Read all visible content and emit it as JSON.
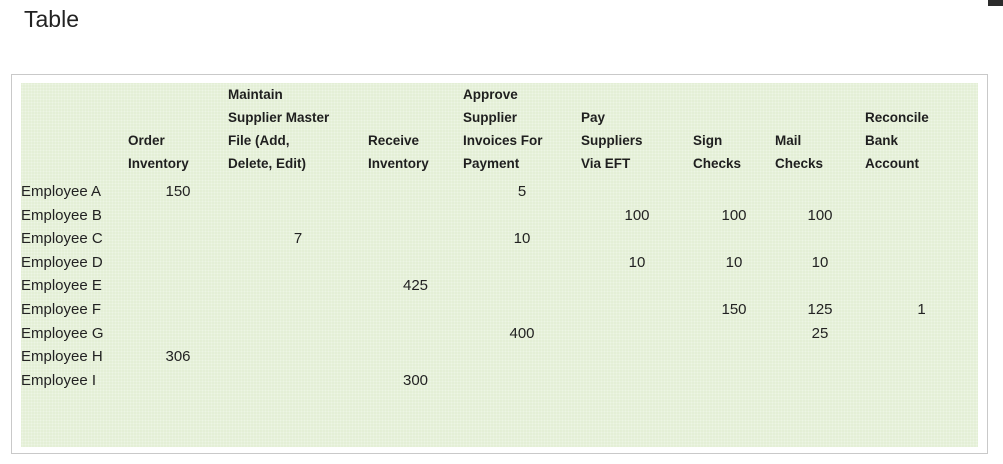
{
  "title": "Table",
  "table": {
    "headers": [
      "",
      "Order\nInventory",
      "Maintain\nSupplier Master\nFile (Add,\nDelete, Edit)",
      "Receive\nInventory",
      "Approve\nSupplier\nInvoices For\nPayment",
      "Pay\nSuppliers\nVia EFT",
      "Sign\nChecks",
      "Mail\nChecks",
      "Reconcile\nBank\nAccount"
    ],
    "rows": [
      [
        "Employee A",
        "150",
        "",
        "",
        "5",
        "",
        "",
        "",
        ""
      ],
      [
        "Employee B",
        "",
        "",
        "",
        "",
        "100",
        "100",
        "100",
        ""
      ],
      [
        "Employee C",
        "",
        "7",
        "",
        "10",
        "",
        "",
        "",
        ""
      ],
      [
        "Employee D",
        "",
        "",
        "",
        "",
        "10",
        "10",
        "10",
        ""
      ],
      [
        "Employee E",
        "",
        "",
        "425",
        "",
        "",
        "",
        "",
        ""
      ],
      [
        "Employee F",
        "",
        "",
        "",
        "",
        "",
        "150",
        "125",
        "1"
      ],
      [
        "Employee G",
        "",
        "",
        "",
        "400",
        "",
        "",
        "25",
        ""
      ],
      [
        "Employee H",
        "306",
        "",
        "",
        "",
        "",
        "",
        "",
        ""
      ],
      [
        "Employee I",
        "",
        "",
        "300",
        "",
        "",
        "",
        "",
        ""
      ]
    ]
  }
}
